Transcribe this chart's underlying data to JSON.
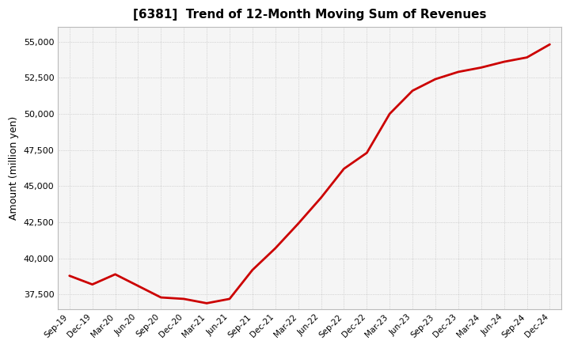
{
  "title": "[6381]  Trend of 12-Month Moving Sum of Revenues",
  "ylabel": "Amount (million yen)",
  "background_color": "#ffffff",
  "plot_bg_color": "#f5f5f5",
  "grid_color": "#aaaaaa",
  "line_color": "#cc0000",
  "x_labels": [
    "Sep-19",
    "Dec-19",
    "Mar-20",
    "Jun-20",
    "Sep-20",
    "Dec-20",
    "Mar-21",
    "Jun-21",
    "Sep-21",
    "Dec-21",
    "Mar-22",
    "Jun-22",
    "Sep-22",
    "Dec-22",
    "Mar-23",
    "Jun-23",
    "Sep-23",
    "Dec-23",
    "Mar-24",
    "Jun-24",
    "Sep-24",
    "Dec-24"
  ],
  "values": [
    38800,
    38200,
    38900,
    38100,
    37300,
    37200,
    36900,
    37200,
    39200,
    40700,
    42400,
    44200,
    46200,
    47300,
    50000,
    51600,
    52400,
    52900,
    53200,
    53600,
    53900,
    54800
  ],
  "ylim": [
    36500,
    56000
  ],
  "yticks": [
    37500,
    40000,
    42500,
    45000,
    47500,
    50000,
    52500,
    55000
  ]
}
